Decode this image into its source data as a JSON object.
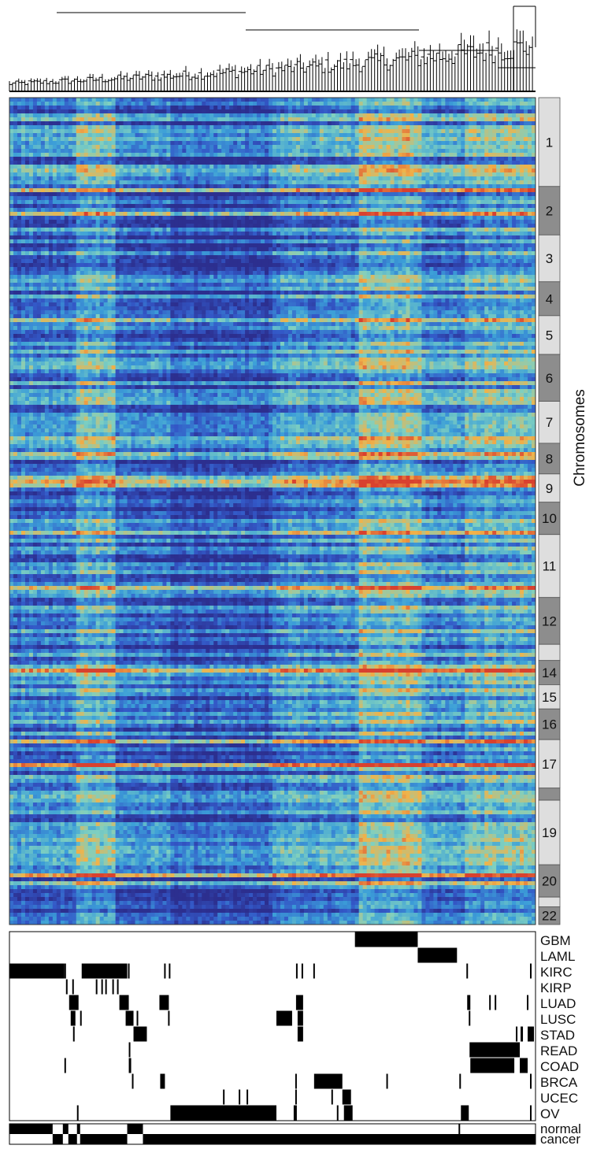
{
  "chart_data": {
    "type": "heatmap",
    "title": "",
    "xlabel": "",
    "ylabel": "Chromosomes",
    "grid": false,
    "legend": "none",
    "colormap": [
      "#2c2f8f",
      "#3358c7",
      "#3c9fd8",
      "#7fd0c0",
      "#f0b34a",
      "#d8412f"
    ],
    "chromosomes": [
      {
        "label": "1",
        "shade": "light",
        "rows": 110
      },
      {
        "label": "2",
        "shade": "dark",
        "rows": 60
      },
      {
        "label": "3",
        "shade": "light",
        "rows": 58
      },
      {
        "label": "4",
        "shade": "dark",
        "rows": 42
      },
      {
        "label": "5",
        "shade": "light",
        "rows": 48
      },
      {
        "label": "6",
        "shade": "dark",
        "rows": 58
      },
      {
        "label": "7",
        "shade": "light",
        "rows": 52
      },
      {
        "label": "8",
        "shade": "dark",
        "rows": 38
      },
      {
        "label": "9",
        "shade": "light",
        "rows": 35
      },
      {
        "label": "10",
        "shade": "dark",
        "rows": 40
      },
      {
        "label": "11",
        "shade": "light",
        "rows": 78
      },
      {
        "label": "12",
        "shade": "dark",
        "rows": 58
      },
      {
        "label": "",
        "shade": "light",
        "rows": 20
      },
      {
        "label": "14",
        "shade": "dark",
        "rows": 30
      },
      {
        "label": "15",
        "shade": "light",
        "rows": 30
      },
      {
        "label": "16",
        "shade": "dark",
        "rows": 38
      },
      {
        "label": "17",
        "shade": "light",
        "rows": 60
      },
      {
        "label": "",
        "shade": "dark",
        "rows": 15
      },
      {
        "label": "19",
        "shade": "light",
        "rows": 80
      },
      {
        "label": "20",
        "shade": "dark",
        "rows": 40
      },
      {
        "label": "",
        "shade": "light",
        "rows": 12
      },
      {
        "label": "22",
        "shade": "dark",
        "rows": 22
      }
    ],
    "cancer_types": [
      "GBM",
      "LAML",
      "KIRC",
      "KIRP",
      "LUAD",
      "LUSC",
      "STAD",
      "READ",
      "COAD",
      "BRCA",
      "UCEC",
      "OV"
    ],
    "tissue_status": [
      "normal",
      "cancer"
    ],
    "n_samples": 670,
    "membership": {
      "GBM": [
        [
          440,
          520
        ]
      ],
      "LAML": [
        [
          520,
          570
        ]
      ],
      "KIRC": [
        [
          0,
          70
        ],
        [
          70,
          72
        ],
        [
          92,
          150
        ],
        [
          102,
          104
        ],
        [
          107,
          109
        ],
        [
          151,
          153
        ],
        [
          197,
          199
        ],
        [
          203,
          205
        ],
        [
          365,
          367
        ],
        [
          372,
          374
        ],
        [
          387,
          389
        ],
        [
          582,
          584
        ],
        [
          663,
          665
        ]
      ],
      "KIRP": [
        [
          72,
          74
        ],
        [
          80,
          82
        ],
        [
          110,
          112
        ],
        [
          117,
          119
        ],
        [
          122,
          124
        ],
        [
          131,
          133
        ],
        [
          137,
          139
        ]
      ],
      "LUAD": [
        [
          76,
          88
        ],
        [
          140,
          152
        ],
        [
          191,
          203
        ],
        [
          365,
          374
        ],
        [
          583,
          587
        ],
        [
          611,
          613
        ],
        [
          618,
          620
        ],
        [
          659,
          661
        ]
      ],
      "LUSC": [
        [
          78,
          84
        ],
        [
          90,
          92
        ],
        [
          148,
          158
        ],
        [
          162,
          164
        ],
        [
          202,
          204
        ],
        [
          340,
          360
        ],
        [
          367,
          374
        ],
        [
          585,
          587
        ]
      ],
      "STAD": [
        [
          158,
          175
        ],
        [
          367,
          374
        ],
        [
          660,
          668
        ],
        [
          651,
          654
        ],
        [
          645,
          647
        ],
        [
          81,
          83
        ]
      ],
      "READ": [
        [
          586,
          650
        ],
        [
          152,
          154
        ]
      ],
      "COAD": [
        [
          587,
          643
        ],
        [
          650,
          660
        ],
        [
          70,
          72
        ],
        [
          152,
          155
        ]
      ],
      "BRCA": [
        [
          388,
          424
        ],
        [
          192,
          198
        ],
        [
          156,
          158
        ],
        [
          364,
          366
        ],
        [
          480,
          482
        ],
        [
          573,
          575
        ],
        [
          663,
          665
        ]
      ],
      "UCEC": [
        [
          424,
          435
        ],
        [
          272,
          274
        ],
        [
          292,
          294
        ],
        [
          302,
          304
        ],
        [
          364,
          366
        ],
        [
          410,
          412
        ]
      ],
      "OV": [
        [
          205,
          340
        ],
        [
          575,
          585
        ],
        [
          86,
          88
        ],
        [
          362,
          366
        ],
        [
          417,
          419
        ],
        [
          426,
          437
        ],
        [
          663,
          665
        ]
      ],
      "normal": [
        [
          0,
          55
        ],
        [
          68,
          75
        ],
        [
          86,
          90
        ],
        [
          150,
          170
        ],
        [
          168,
          170
        ],
        [
          572,
          574
        ]
      ],
      "cancer": [
        [
          55,
          68
        ],
        [
          75,
          86
        ],
        [
          90,
          150
        ],
        [
          170,
          670
        ]
      ]
    }
  }
}
